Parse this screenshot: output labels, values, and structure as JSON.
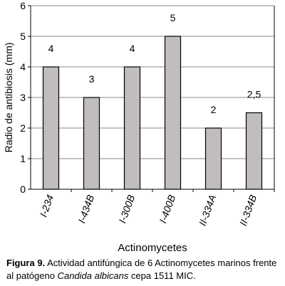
{
  "chart_data": {
    "type": "bar",
    "categories": [
      "I-234",
      "I-434B",
      "I-300B",
      "I-400B",
      "II-334A",
      "II-334B"
    ],
    "values": [
      4,
      3,
      4,
      5,
      2,
      2.5
    ],
    "data_labels": [
      "4",
      "3",
      "4",
      "5",
      "2",
      "2,5"
    ],
    "xlabel": "Actinomycetes",
    "ylabel": "Radio de antibiosis (mm)",
    "ylim": [
      0,
      6
    ],
    "yticks": [
      "0",
      "1",
      "2",
      "3",
      "4",
      "5",
      "6"
    ],
    "grid": true,
    "bar_color": "#c0bcc0",
    "legend": "none"
  },
  "caption": {
    "label": "Figura 9.",
    "text_before": " Actividad antifúngica de 6 Actinomycetes marinos frente al patógeno ",
    "species": "Candida albicans",
    "text_after": " cepa 1511 MIC."
  }
}
